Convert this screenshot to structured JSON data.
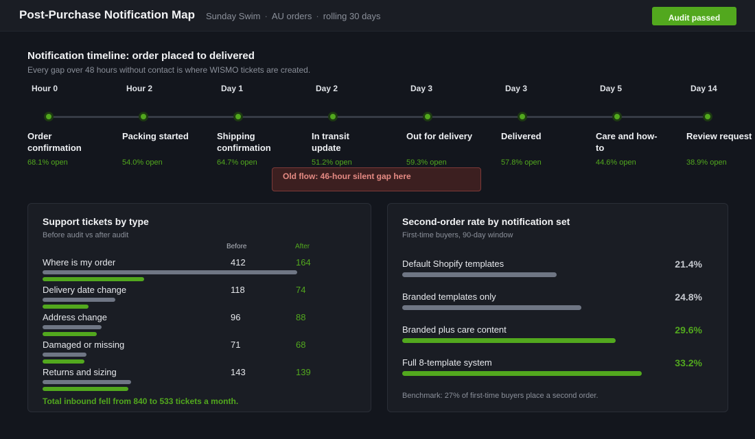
{
  "header": {
    "title": "Post-Purchase Notification Map",
    "crumbs": [
      "Sunday Swim",
      "AU orders",
      "rolling 30 days"
    ],
    "crumb_sep": "·",
    "audit_label": "Audit passed"
  },
  "timeline": {
    "title": "Notification timeline: order placed to delivered",
    "subtitle": "Every gap over 48 hours without contact is where WISMO tickets are created.",
    "stages": [
      {
        "day": "Hour 0",
        "name": "Order confirmation",
        "open": "68.1% open"
      },
      {
        "day": "Hour 2",
        "name": "Packing started",
        "open": "54.0% open"
      },
      {
        "day": "Day 1",
        "name": "Shipping confirmation",
        "open": "64.7% open"
      },
      {
        "day": "Day 2",
        "name": "In transit update",
        "open": "51.2% open"
      },
      {
        "day": "Day 3",
        "name": "Out for delivery",
        "open": "59.3% open"
      },
      {
        "day": "Day 3",
        "name": "Delivered",
        "open": "57.8% open"
      },
      {
        "day": "Day 5",
        "name": "Care and how-to",
        "open": "44.6% open"
      },
      {
        "day": "Day 14",
        "name": "Review request",
        "open": "38.9% open"
      }
    ],
    "gap_note": "Old flow: 46-hour silent gap here"
  },
  "tickets": {
    "title": "Support tickets by type",
    "subtitle": "Before audit vs after audit",
    "before_label": "Before",
    "after_label": "After",
    "rows": [
      {
        "label": "Where is my order",
        "before": "412",
        "after": "164"
      },
      {
        "label": "Delivery date change",
        "before": "118",
        "after": "74"
      },
      {
        "label": "Address change",
        "before": "96",
        "after": "88"
      },
      {
        "label": "Damaged or missing",
        "before": "71",
        "after": "68"
      },
      {
        "label": "Returns and sizing",
        "before": "143",
        "after": "139"
      }
    ],
    "footer": "Total inbound fell from 840 to 533 tickets a month."
  },
  "rates": {
    "title": "Second-order rate by notification set",
    "subtitle": "First-time buyers, 90-day window",
    "rows": [
      {
        "label": "Default Shopify templates",
        "value": "21.4%",
        "pct": 21.4,
        "highlight": false
      },
      {
        "label": "Branded templates only",
        "value": "24.8%",
        "pct": 24.8,
        "highlight": false
      },
      {
        "label": "Branded plus care content",
        "value": "29.6%",
        "pct": 29.6,
        "highlight": true
      },
      {
        "label": "Full 8-template system",
        "value": "33.2%",
        "pct": 33.2,
        "highlight": true
      }
    ],
    "footer": "Benchmark: 27% of first-time buyers place a second order."
  },
  "colors": {
    "accent": "#52a81e",
    "muted_bar": "#6f7684",
    "alert": "#e58a83"
  }
}
